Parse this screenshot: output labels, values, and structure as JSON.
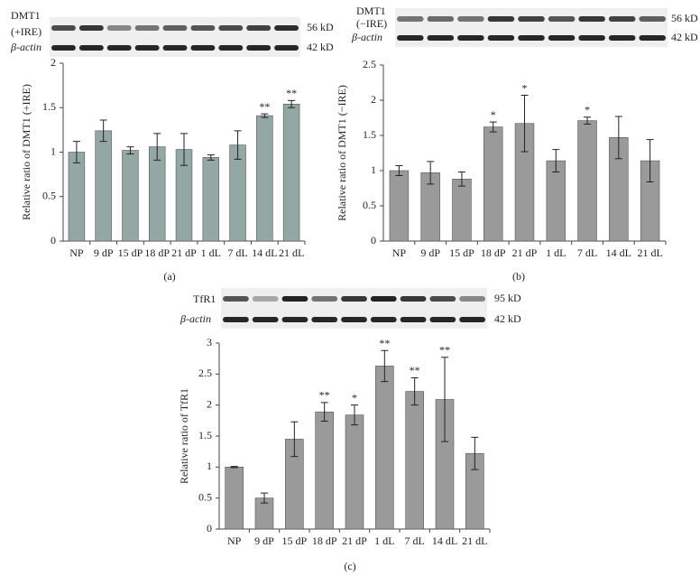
{
  "chart_data": [
    {
      "type": "bar",
      "panel": "(a)",
      "y_label": "Relative ratio of DMT1 (+IRE)",
      "color": "#93a8a4",
      "blot": {
        "target": [
          "DMT1",
          "(+IRE)"
        ],
        "target_size": "56 kD",
        "control": "β-actin",
        "control_size": "42 kD"
      },
      "categories": [
        "NP",
        "9 dP",
        "15 dP",
        "18 dP",
        "21 dP",
        "1 dL",
        "7 dL",
        "14 dL",
        "21 dL"
      ],
      "values": [
        1.0,
        1.24,
        1.02,
        1.06,
        1.03,
        0.94,
        1.08,
        1.41,
        1.54
      ],
      "errors": [
        0.12,
        0.12,
        0.04,
        0.15,
        0.18,
        0.03,
        0.16,
        0.02,
        0.04
      ],
      "significance": [
        null,
        null,
        null,
        null,
        null,
        null,
        null,
        "**",
        "**"
      ],
      "ylim": [
        0,
        2
      ],
      "yticks": [
        0,
        0.5,
        1,
        1.5,
        2
      ]
    },
    {
      "type": "bar",
      "panel": "(b)",
      "y_label": "Relative ratio of DMT1 (−IRE)",
      "color": "#9a9a9a",
      "blot": {
        "target": [
          "DMT1",
          "(−IRE)"
        ],
        "target_size": "56 kD",
        "control": "β-actin",
        "control_size": "42 kD"
      },
      "categories": [
        "NP",
        "9 dP",
        "15 dP",
        "18 dP",
        "21 dP",
        "1 dL",
        "7 dL",
        "14 dL",
        "21 dL"
      ],
      "values": [
        1.0,
        0.97,
        0.88,
        1.62,
        1.67,
        1.14,
        1.71,
        1.47,
        1.14
      ],
      "errors": [
        0.07,
        0.16,
        0.1,
        0.07,
        0.4,
        0.16,
        0.05,
        0.3,
        0.3
      ],
      "significance": [
        null,
        null,
        null,
        "*",
        "*",
        null,
        "*",
        null,
        null
      ],
      "ylim": [
        0,
        2.5
      ],
      "yticks": [
        0,
        0.5,
        1,
        1.5,
        2,
        2.5
      ]
    },
    {
      "type": "bar",
      "panel": "(c)",
      "y_label": "Relative ratio of TfR1",
      "color": "#9a9a9a",
      "blot": {
        "target": [
          "TfR1"
        ],
        "target_size": "95 kD",
        "control": "β-actin",
        "control_size": "42 kD"
      },
      "categories": [
        "NP",
        "9 dP",
        "15 dP",
        "18 dP",
        "21 dP",
        "1 dL",
        "7 dL",
        "14 dL",
        "21 dL"
      ],
      "values": [
        1.0,
        0.5,
        1.45,
        1.89,
        1.84,
        2.63,
        2.22,
        2.09,
        1.22
      ],
      "errors": [
        0.01,
        0.08,
        0.28,
        0.15,
        0.16,
        0.25,
        0.22,
        0.68,
        0.26
      ],
      "significance": [
        null,
        null,
        null,
        "**",
        "*",
        "**",
        "**",
        "**",
        null
      ],
      "ylim": [
        0,
        3
      ],
      "yticks": [
        0,
        0.5,
        1,
        1.5,
        2,
        2.5,
        3
      ]
    }
  ]
}
